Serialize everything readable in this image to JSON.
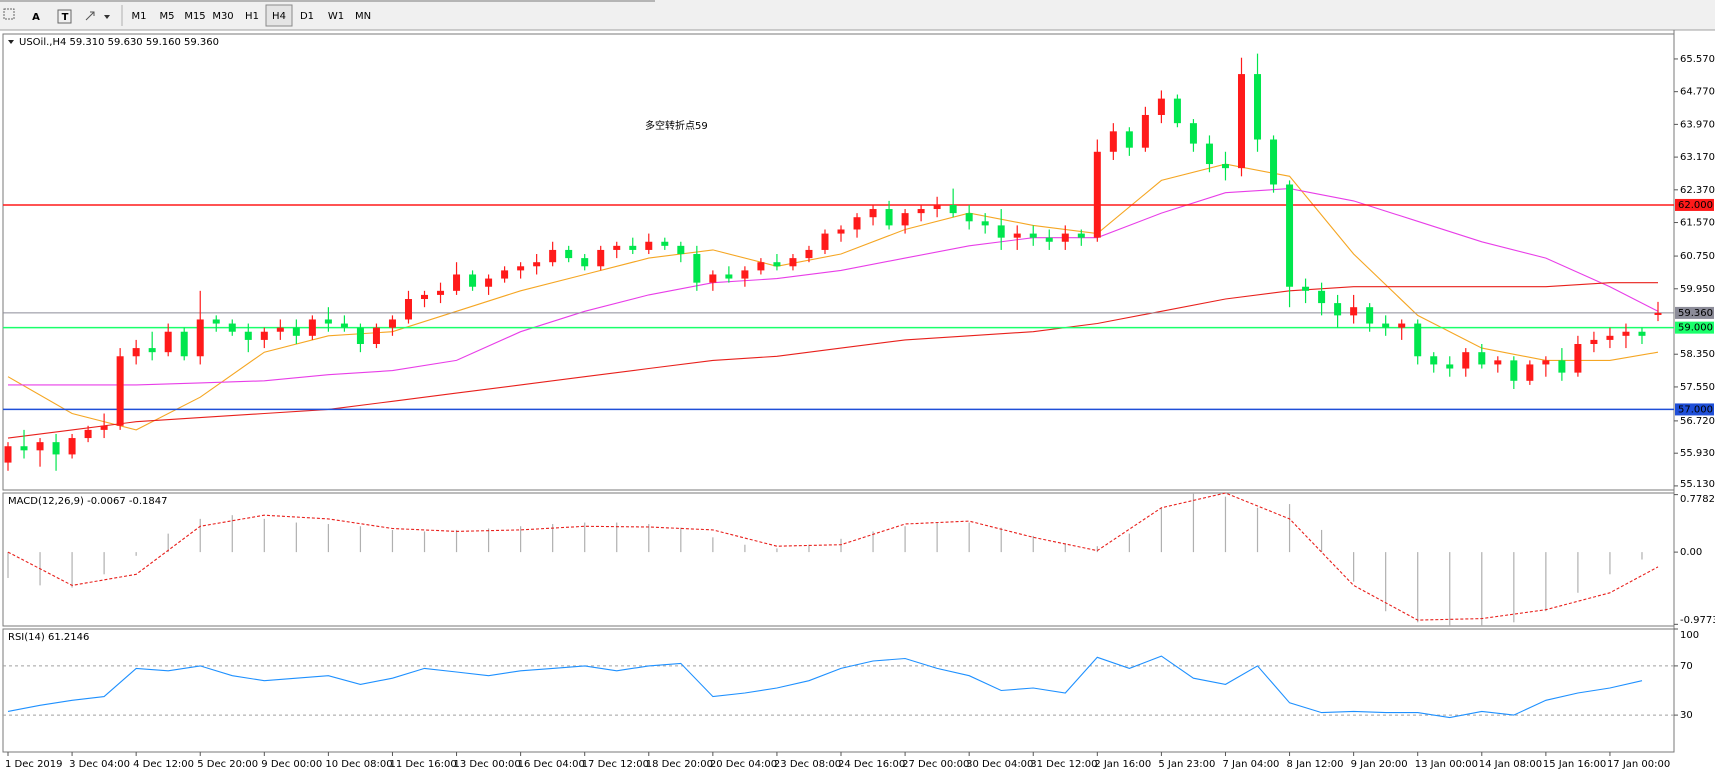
{
  "toolbar": {
    "tools": [
      "A",
      "T"
    ],
    "timeframes": [
      "M1",
      "M5",
      "M15",
      "M30",
      "H1",
      "H4",
      "D1",
      "W1",
      "MN"
    ],
    "active": "H4"
  },
  "chart_data": [
    {
      "type": "candlestick",
      "title": "USOil.,H4  59.310 59.630 59.160 59.360",
      "annotation": "多空转折点59",
      "annotation_color": "#e8201c",
      "categories": [
        "1 Dec 2019",
        null,
        null,
        null,
        "3 Dec 04:00",
        null,
        null,
        null,
        "4 Dec 12:00",
        null,
        null,
        null,
        "5 Dec 20:00",
        null,
        null,
        null,
        "9 Dec 00:00",
        null,
        null,
        null,
        "10 Dec 08:00",
        null,
        null,
        null,
        "11 Dec 16:00",
        null,
        null,
        null,
        "13 Dec 00:00",
        null,
        null,
        null,
        "16 Dec 04:00",
        null,
        null,
        null,
        "17 Dec 12:00",
        null,
        null,
        null,
        "18 Dec 20:00",
        null,
        null,
        null,
        "20 Dec 04:00",
        null,
        null,
        null,
        "23 Dec 08:00",
        null,
        null,
        null,
        "24 Dec 16:00",
        null,
        null,
        null,
        "27 Dec 00:00",
        null,
        null,
        null,
        "30 Dec 04:00",
        null,
        null,
        null,
        "31 Dec 12:00",
        null,
        null,
        null,
        "2 Jan 16:00",
        null,
        null,
        null,
        "5 Jan 23:00",
        null,
        null,
        null,
        "7 Jan 04:00",
        null,
        null,
        null,
        "8 Jan 12:00",
        null,
        null,
        null,
        "9 Jan 20:00",
        null,
        null,
        null,
        "13 Jan 00:00",
        null,
        null,
        null,
        "14 Jan 08:00",
        null,
        null,
        null,
        "15 Jan 16:00",
        null,
        null,
        null,
        "17 Jan 00:00",
        null,
        null,
        null
      ],
      "candles": [
        [
          55.7,
          56.2,
          55.5,
          56.1
        ],
        [
          56.1,
          56.5,
          55.8,
          56.0
        ],
        [
          56.0,
          56.3,
          55.6,
          56.2
        ],
        [
          56.2,
          56.4,
          55.5,
          55.9
        ],
        [
          55.9,
          56.4,
          55.8,
          56.3
        ],
        [
          56.3,
          56.6,
          56.2,
          56.5
        ],
        [
          56.5,
          56.9,
          56.3,
          56.6
        ],
        [
          56.6,
          58.5,
          56.5,
          58.3
        ],
        [
          58.3,
          58.7,
          58.1,
          58.5
        ],
        [
          58.5,
          58.9,
          58.2,
          58.4
        ],
        [
          58.4,
          59.1,
          58.3,
          58.9
        ],
        [
          58.9,
          59.0,
          58.2,
          58.3
        ],
        [
          58.3,
          59.9,
          58.1,
          59.2
        ],
        [
          59.2,
          59.3,
          58.9,
          59.1
        ],
        [
          59.1,
          59.2,
          58.8,
          58.9
        ],
        [
          58.9,
          59.1,
          58.4,
          58.7
        ],
        [
          58.7,
          59.0,
          58.5,
          58.9
        ],
        [
          58.9,
          59.2,
          58.7,
          59.0
        ],
        [
          59.0,
          59.2,
          58.6,
          58.8
        ],
        [
          58.8,
          59.3,
          58.7,
          59.2
        ],
        [
          59.2,
          59.5,
          58.9,
          59.1
        ],
        [
          59.1,
          59.3,
          58.9,
          59.0
        ],
        [
          59.0,
          59.1,
          58.4,
          58.6
        ],
        [
          58.6,
          59.1,
          58.5,
          59.0
        ],
        [
          59.0,
          59.3,
          58.8,
          59.2
        ],
        [
          59.2,
          59.9,
          59.1,
          59.7
        ],
        [
          59.7,
          59.9,
          59.5,
          59.8
        ],
        [
          59.8,
          60.1,
          59.6,
          59.9
        ],
        [
          59.9,
          60.6,
          59.8,
          60.3
        ],
        [
          60.3,
          60.4,
          59.9,
          60.0
        ],
        [
          60.0,
          60.3,
          59.8,
          60.2
        ],
        [
          60.2,
          60.5,
          60.1,
          60.4
        ],
        [
          60.4,
          60.6,
          60.2,
          60.5
        ],
        [
          60.5,
          60.8,
          60.3,
          60.6
        ],
        [
          60.6,
          61.1,
          60.5,
          60.9
        ],
        [
          60.9,
          61.0,
          60.6,
          60.7
        ],
        [
          60.7,
          60.8,
          60.4,
          60.5
        ],
        [
          60.5,
          61.0,
          60.4,
          60.9
        ],
        [
          60.9,
          61.1,
          60.7,
          61.0
        ],
        [
          61.0,
          61.2,
          60.8,
          60.9
        ],
        [
          60.9,
          61.3,
          60.8,
          61.1
        ],
        [
          61.1,
          61.2,
          60.9,
          61.0
        ],
        [
          61.0,
          61.1,
          60.6,
          60.8
        ],
        [
          60.8,
          61.0,
          59.9,
          60.1
        ],
        [
          60.1,
          60.4,
          59.9,
          60.3
        ],
        [
          60.3,
          60.5,
          60.1,
          60.2
        ],
        [
          60.2,
          60.5,
          60.0,
          60.4
        ],
        [
          60.4,
          60.7,
          60.3,
          60.6
        ],
        [
          60.6,
          60.8,
          60.4,
          60.5
        ],
        [
          60.5,
          60.8,
          60.4,
          60.7
        ],
        [
          60.7,
          61.0,
          60.6,
          60.9
        ],
        [
          60.9,
          61.4,
          60.8,
          61.3
        ],
        [
          61.3,
          61.5,
          61.1,
          61.4
        ],
        [
          61.4,
          61.8,
          61.2,
          61.7
        ],
        [
          61.7,
          62.0,
          61.5,
          61.9
        ],
        [
          61.9,
          62.1,
          61.4,
          61.5
        ],
        [
          61.5,
          61.9,
          61.3,
          61.8
        ],
        [
          61.8,
          62.0,
          61.6,
          61.9
        ],
        [
          61.9,
          62.2,
          61.7,
          62.0
        ],
        [
          62.0,
          62.4,
          61.7,
          61.8
        ],
        [
          61.8,
          62.0,
          61.4,
          61.6
        ],
        [
          61.6,
          61.8,
          61.3,
          61.5
        ],
        [
          61.5,
          61.9,
          60.9,
          61.2
        ],
        [
          61.2,
          61.5,
          60.9,
          61.3
        ],
        [
          61.3,
          61.5,
          61.0,
          61.2
        ],
        [
          61.2,
          61.4,
          60.9,
          61.1
        ],
        [
          61.1,
          61.5,
          60.9,
          61.3
        ],
        [
          61.3,
          61.4,
          61.0,
          61.2
        ],
        [
          61.2,
          63.6,
          61.1,
          63.3
        ],
        [
          63.3,
          64.0,
          63.1,
          63.8
        ],
        [
          63.8,
          63.9,
          63.2,
          63.4
        ],
        [
          63.4,
          64.4,
          63.3,
          64.2
        ],
        [
          64.2,
          64.8,
          64.0,
          64.6
        ],
        [
          64.6,
          64.7,
          63.9,
          64.0
        ],
        [
          64.0,
          64.1,
          63.3,
          63.5
        ],
        [
          63.5,
          63.7,
          62.8,
          63.0
        ],
        [
          63.0,
          63.3,
          62.6,
          62.9
        ],
        [
          62.9,
          65.6,
          62.7,
          65.2
        ],
        [
          65.2,
          65.7,
          63.3,
          63.6
        ],
        [
          63.6,
          63.7,
          62.3,
          62.5
        ],
        [
          62.5,
          62.6,
          59.5,
          60.0
        ],
        [
          60.0,
          60.2,
          59.6,
          59.9
        ],
        [
          59.9,
          60.1,
          59.3,
          59.6
        ],
        [
          59.6,
          59.8,
          59.0,
          59.3
        ],
        [
          59.3,
          59.8,
          59.1,
          59.5
        ],
        [
          59.5,
          59.6,
          58.9,
          59.1
        ],
        [
          59.1,
          59.3,
          58.8,
          59.0
        ],
        [
          59.0,
          59.2,
          58.7,
          59.1
        ],
        [
          59.1,
          59.2,
          58.1,
          58.3
        ],
        [
          58.3,
          58.4,
          57.9,
          58.1
        ],
        [
          58.1,
          58.3,
          57.8,
          58.0
        ],
        [
          58.0,
          58.5,
          57.8,
          58.4
        ],
        [
          58.4,
          58.6,
          58.0,
          58.1
        ],
        [
          58.1,
          58.3,
          57.9,
          58.2
        ],
        [
          58.2,
          58.3,
          57.5,
          57.7
        ],
        [
          57.7,
          58.2,
          57.6,
          58.1
        ],
        [
          58.1,
          58.3,
          57.8,
          58.2
        ],
        [
          58.2,
          58.5,
          57.7,
          57.9
        ],
        [
          57.9,
          58.8,
          57.8,
          58.6
        ],
        [
          58.6,
          58.9,
          58.4,
          58.7
        ],
        [
          58.7,
          59.0,
          58.5,
          58.8
        ],
        [
          58.8,
          59.1,
          58.5,
          58.9
        ],
        [
          58.9,
          59.0,
          58.6,
          58.8
        ],
        [
          59.31,
          59.63,
          59.16,
          59.36
        ]
      ],
      "up_color": "#ff1a1a",
      "down_color": "#00e64d",
      "ylim": [
        55.03,
        66.18
      ],
      "yticks": [
        {
          "value": 65.57,
          "label": "65.570"
        },
        {
          "value": 64.77,
          "label": "64.770"
        },
        {
          "value": 63.97,
          "label": "63.970"
        },
        {
          "value": 63.17,
          "label": "63.170"
        },
        {
          "value": 62.37,
          "label": "62.370"
        },
        {
          "value": 61.57,
          "label": "61.570"
        },
        {
          "value": 60.75,
          "label": "60.750"
        },
        {
          "value": 59.95,
          "label": "59.950"
        },
        {
          "value": 58.35,
          "label": "58.350"
        },
        {
          "value": 57.55,
          "label": "57.550"
        },
        {
          "value": 56.72,
          "label": "56.720"
        },
        {
          "value": 55.93,
          "label": "55.930"
        },
        {
          "value": 55.13,
          "label": "55.130"
        }
      ],
      "moving_averages": [
        {
          "color": "#f5a623",
          "values": [
            57.8,
            56.9,
            56.5,
            57.3,
            58.4,
            58.8,
            58.9,
            59.4,
            59.9,
            60.3,
            60.7,
            60.9,
            60.5,
            60.8,
            61.4,
            61.8,
            61.5,
            61.3,
            62.6,
            63.0,
            62.7,
            60.8,
            59.3,
            58.5,
            58.2,
            58.2,
            58.4
          ]
        },
        {
          "color": "#e83ee8",
          "values": [
            57.6,
            57.6,
            57.6,
            57.65,
            57.7,
            57.85,
            57.95,
            58.2,
            58.9,
            59.4,
            59.8,
            60.1,
            60.2,
            60.4,
            60.7,
            61.0,
            61.2,
            61.2,
            61.8,
            62.3,
            62.4,
            62.1,
            61.6,
            61.1,
            60.7,
            60.0,
            59.4
          ]
        },
        {
          "color": "#e8201c",
          "values": [
            56.3,
            56.5,
            56.7,
            56.8,
            56.9,
            57.0,
            57.2,
            57.4,
            57.6,
            57.8,
            58.0,
            58.2,
            58.3,
            58.5,
            58.7,
            58.8,
            58.9,
            59.1,
            59.4,
            59.7,
            59.9,
            60.0,
            60.0,
            60.0,
            60.0,
            60.1,
            60.1
          ]
        }
      ],
      "levels": [
        {
          "value": 62,
          "label": "62.000",
          "color": "#ff1a1a"
        },
        {
          "value": 59.36,
          "label": "59.360",
          "color": "#8c8c99"
        },
        {
          "value": 59,
          "label": "59.000",
          "color": "#1aff6b"
        },
        {
          "value": 57,
          "label": "57.000",
          "color": "#1f4fd8"
        }
      ]
    },
    {
      "type": "macd",
      "title": "MACD(12,26,9) -0.0067 -0.1847",
      "ylim": [
        -1.0,
        0.8
      ],
      "yticks": [
        0.7782,
        {
          "value": 0,
          "label": "0.00"
        },
        -0.9773
      ],
      "histogram": [
        -0.35,
        -0.45,
        -0.48,
        -0.3,
        -0.05,
        0.25,
        0.45,
        0.5,
        0.45,
        0.4,
        0.38,
        0.35,
        0.3,
        0.28,
        0.3,
        0.32,
        0.35,
        0.38,
        0.4,
        0.4,
        0.38,
        0.33,
        0.2,
        0.1,
        0.05,
        0.1,
        0.18,
        0.28,
        0.35,
        0.4,
        0.4,
        0.33,
        0.22,
        0.12,
        0.08,
        0.25,
        0.6,
        0.8,
        0.75,
        0.6,
        0.65,
        0.3,
        -0.4,
        -0.8,
        -0.95,
        -1.0,
        -1.0,
        -0.95,
        -0.8,
        -0.55,
        -0.3,
        -0.1
      ],
      "histogram_color": "#b0b0b0",
      "signal": [
        0.0,
        -0.45,
        -0.3,
        0.35,
        0.5,
        0.45,
        0.32,
        0.28,
        0.3,
        0.35,
        0.34,
        0.3,
        0.08,
        0.1,
        0.38,
        0.42,
        0.2,
        0.02,
        0.6,
        0.8,
        0.45,
        -0.45,
        -0.92,
        -0.9,
        -0.78,
        -0.55,
        -0.2
      ],
      "signal_color": "#e8201c"
    },
    {
      "type": "line",
      "title": "RSI(14) 61.2146",
      "ylim": [
        0,
        100
      ],
      "yticks": [
        100,
        70,
        30
      ],
      "dashed_levels": [
        70,
        30
      ],
      "values": [
        33,
        38,
        42,
        45,
        68,
        66,
        70,
        62,
        58,
        60,
        62,
        55,
        60,
        68,
        65,
        62,
        66,
        68,
        70,
        66,
        70,
        72,
        45,
        48,
        52,
        58,
        68,
        74,
        76,
        68,
        62,
        50,
        52,
        48,
        77,
        68,
        78,
        60,
        55,
        70,
        40,
        32,
        33,
        32,
        32,
        28,
        33,
        30,
        42,
        48,
        52,
        58
      ],
      "color": "#1e90ff"
    }
  ]
}
